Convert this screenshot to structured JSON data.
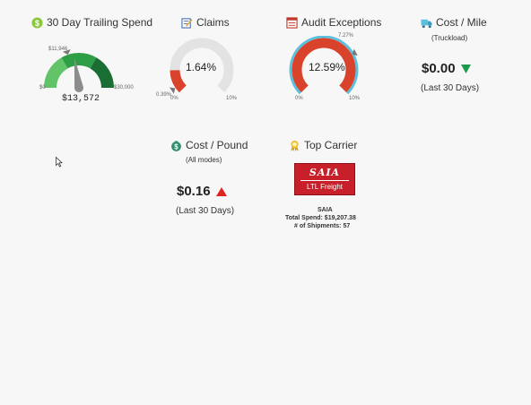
{
  "spend": {
    "title": "30 Day Trailing Spend",
    "icon": "dollar-coin-icon",
    "value": "$13,572",
    "min_label": "$0",
    "max_label": "$30,000",
    "target_label": "$11,946",
    "min": 0,
    "max": 30000,
    "current": 13572,
    "target": 11946,
    "colors": [
      "#62c369",
      "#2e9e47",
      "#1b6e33"
    ]
  },
  "claims": {
    "title": "Claims",
    "icon": "edit-document-icon",
    "value": "1.64%",
    "min_label": "0%",
    "max_label": "10%",
    "target_label": "0.39%",
    "current": 1.64,
    "target": 0.39,
    "min": 0,
    "max": 10
  },
  "audit": {
    "title": "Audit Exceptions",
    "icon": "report-icon",
    "value": "12.59%",
    "min_label": "0%",
    "max_label": "10%",
    "target_label": "7.27%",
    "current": 12.59,
    "target": 7.27,
    "min": 0,
    "max": 10
  },
  "cost_mile": {
    "title": "Cost / Mile",
    "icon": "truck-icon",
    "subtitle": "(Truckload)",
    "value": "$0.00",
    "trend": "down",
    "period": "(Last 30 Days)"
  },
  "cost_pound": {
    "title": "Cost / Pound",
    "icon": "money-bag-icon",
    "subtitle": "(All modes)",
    "value": "$0.16",
    "trend": "up",
    "period": "(Last 30 Days)"
  },
  "top_carrier": {
    "title": "Top Carrier",
    "icon": "award-ribbon-icon",
    "logo_top": "SAIA",
    "logo_bottom": "LTL Freight",
    "name": "SAIA",
    "total_spend": "Total Spend: $19,207.38",
    "shipments": "# of Shipments: 57"
  },
  "colors": {
    "gauge_track": "#e3e3e3",
    "gauge_red": "#d9432c",
    "gauge_blue": "#5bc0de",
    "down_green": "#1c9b4a",
    "up_red": "#e02424"
  }
}
